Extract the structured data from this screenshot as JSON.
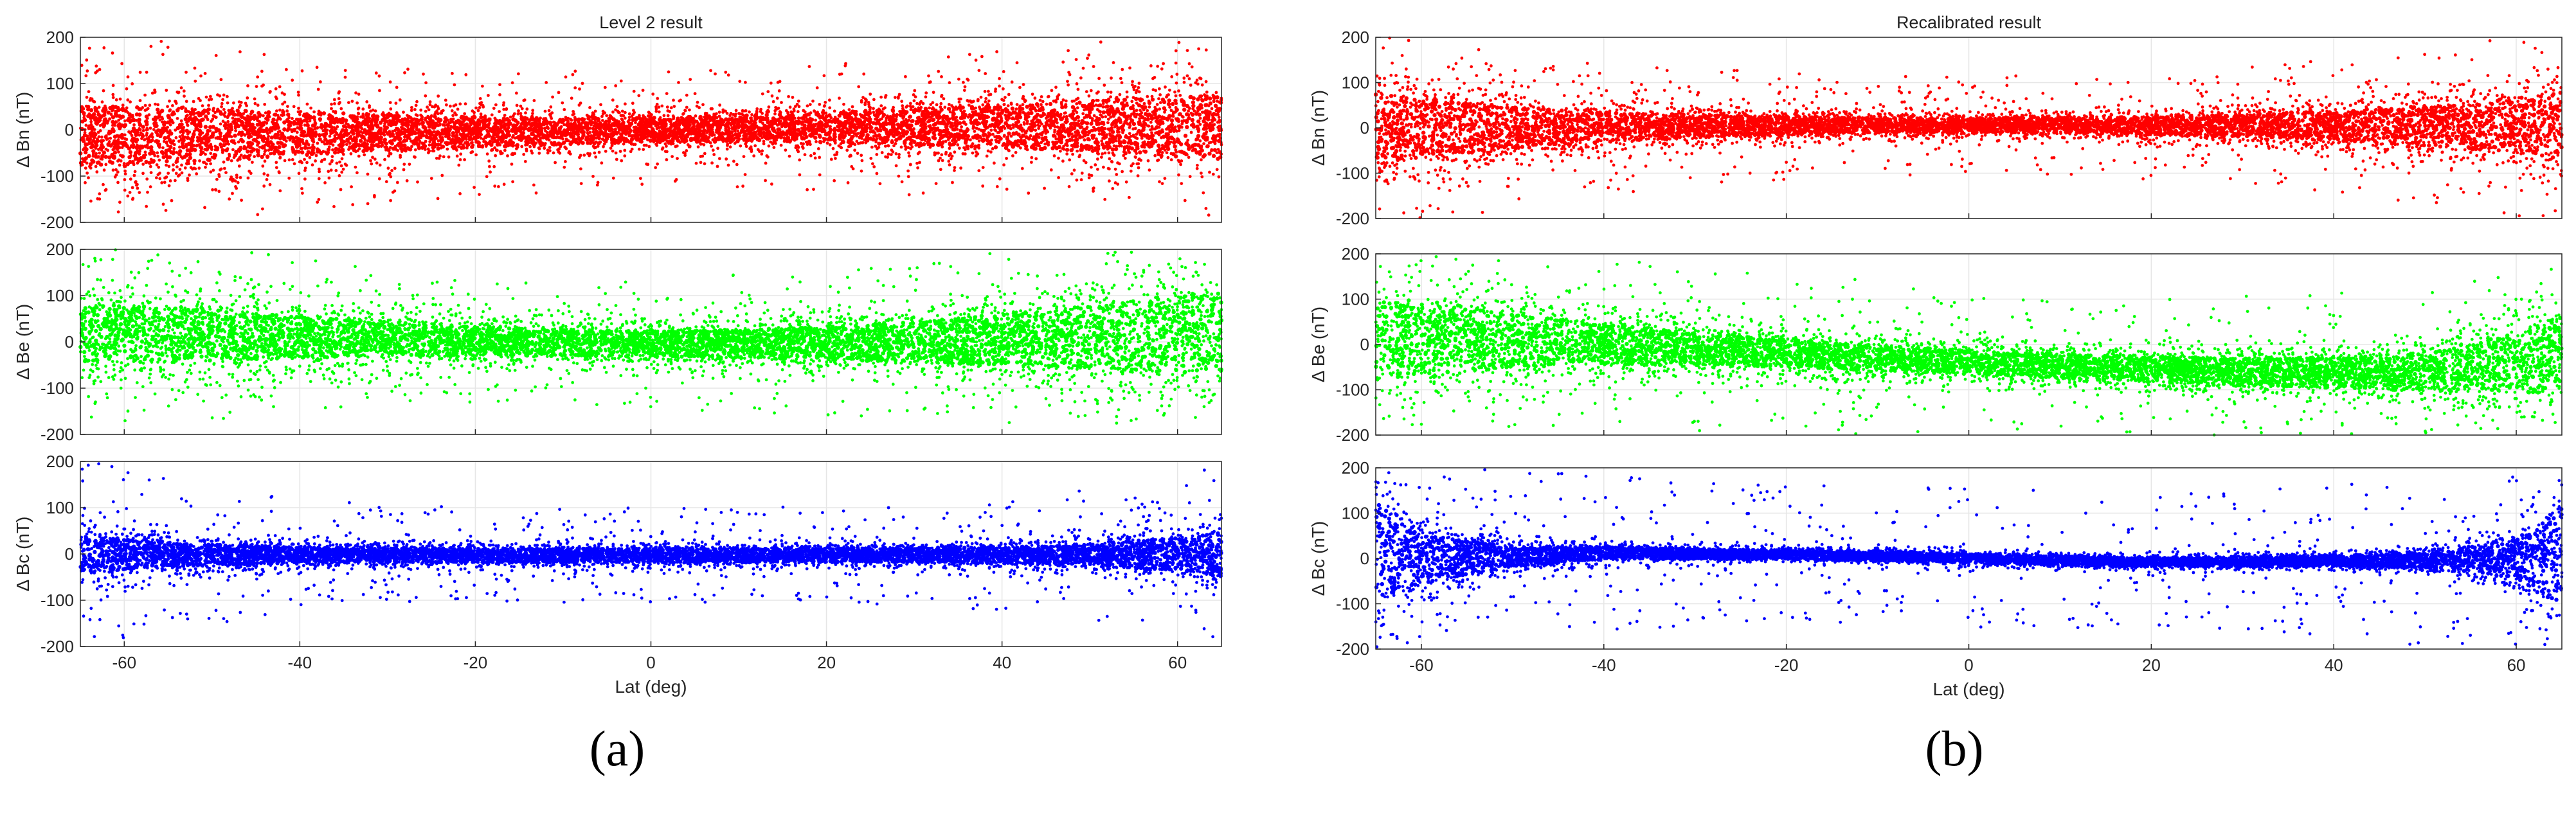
{
  "figure": {
    "labels": [
      "(a)",
      "(b)"
    ],
    "colors": {
      "n": "#ff0000",
      "e": "#00ff00",
      "c": "#0000ff",
      "axis": "#262626",
      "grid": "#e6e6e6"
    }
  },
  "chart_data": [
    {
      "type": "scatter",
      "title": "Level 2 result",
      "xlabel": "Lat (deg)",
      "xlim": [
        -65,
        65
      ],
      "xticks": [
        -60,
        -40,
        -20,
        0,
        20,
        40,
        60
      ],
      "xtick_labels": [
        "-60",
        "-40",
        "-20",
        "0",
        "20",
        "40",
        "60"
      ],
      "grid": true,
      "subplots": [
        {
          "ylabel": "Δ Bn (nT)",
          "color": "#ff0000",
          "ylim": [
            -200,
            200
          ],
          "yticks": [
            -200,
            -100,
            0,
            100,
            200
          ],
          "ytick_labels": [
            "-200",
            "-100",
            "0",
            "100",
            "200"
          ],
          "x": [
            -65,
            -60,
            -50,
            -40,
            -30,
            -20,
            -10,
            0,
            10,
            20,
            30,
            40,
            50,
            60,
            65
          ],
          "center": [
            -10,
            -12,
            -10,
            -8,
            -6,
            -5,
            -3,
            0,
            3,
            5,
            6,
            8,
            8,
            6,
            5
          ],
          "half_width": [
            120,
            118,
            100,
            85,
            70,
            60,
            52,
            48,
            52,
            60,
            70,
            85,
            100,
            118,
            125
          ],
          "outlier_spread": [
            200,
            200,
            185,
            165,
            150,
            140,
            130,
            125,
            130,
            140,
            150,
            165,
            185,
            200,
            200
          ]
        },
        {
          "ylabel": "Δ Be (nT)",
          "color": "#00ff00",
          "ylim": [
            -200,
            200
          ],
          "yticks": [
            -200,
            -100,
            0,
            100,
            200
          ],
          "ytick_labels": [
            "-200",
            "-100",
            "0",
            "100",
            "200"
          ],
          "x": [
            -65,
            -60,
            -50,
            -40,
            -30,
            -20,
            -10,
            0,
            10,
            20,
            30,
            40,
            50,
            60,
            65
          ],
          "center": [
            20,
            20,
            15,
            10,
            6,
            2,
            -2,
            -5,
            -4,
            -3,
            0,
            5,
            10,
            15,
            20
          ],
          "half_width": [
            120,
            118,
            100,
            82,
            68,
            58,
            52,
            50,
            55,
            65,
            80,
            100,
            125,
            150,
            155
          ],
          "outlier_spread": [
            200,
            200,
            190,
            170,
            150,
            140,
            135,
            140,
            150,
            160,
            175,
            190,
            200,
            200,
            200
          ]
        },
        {
          "ylabel": "Δ Bc (nT)",
          "color": "#0000ff",
          "ylim": [
            -200,
            200
          ],
          "yticks": [
            -200,
            -100,
            0,
            100,
            200
          ],
          "ytick_labels": [
            "-200",
            "-100",
            "0",
            "100",
            "200"
          ],
          "x": [
            -65,
            -60,
            -50,
            -40,
            -30,
            -20,
            -10,
            0,
            10,
            20,
            30,
            40,
            50,
            60,
            65
          ],
          "center": [
            0,
            0,
            -2,
            -2,
            -3,
            -3,
            -3,
            -3,
            -3,
            -2,
            -2,
            -2,
            -1,
            0,
            0
          ],
          "half_width": [
            75,
            60,
            40,
            30,
            28,
            27,
            27,
            27,
            27,
            27,
            28,
            30,
            40,
            65,
            90
          ],
          "outlier_spread": [
            200,
            190,
            150,
            120,
            110,
            105,
            105,
            105,
            105,
            105,
            110,
            120,
            150,
            190,
            200
          ]
        }
      ]
    },
    {
      "type": "scatter",
      "title": "Recalibrated result",
      "xlabel": "Lat (deg)",
      "xlim": [
        -65,
        65
      ],
      "xticks": [
        -60,
        -40,
        -20,
        0,
        20,
        40,
        60
      ],
      "xtick_labels": [
        "-60",
        "-40",
        "-20",
        "0",
        "20",
        "40",
        "60"
      ],
      "grid": true,
      "subplots": [
        {
          "ylabel": "Δ Bn (nT)",
          "color": "#ff0000",
          "ylim": [
            -200,
            200
          ],
          "yticks": [
            -200,
            -100,
            0,
            100,
            200
          ],
          "ytick_labels": [
            "-200",
            "-100",
            "0",
            "100",
            "200"
          ],
          "x": [
            -65,
            -60,
            -50,
            -40,
            -30,
            -20,
            -10,
            0,
            10,
            20,
            30,
            40,
            50,
            60,
            65
          ],
          "center": [
            0,
            0,
            0,
            2,
            4,
            5,
            6,
            6,
            6,
            5,
            5,
            5,
            5,
            5,
            5
          ],
          "half_width": [
            140,
            120,
            85,
            60,
            45,
            35,
            30,
            28,
            30,
            35,
            45,
            60,
            80,
            110,
            135
          ],
          "outlier_spread": [
            200,
            200,
            180,
            150,
            130,
            120,
            110,
            110,
            110,
            120,
            130,
            150,
            175,
            200,
            200
          ]
        },
        {
          "ylabel": "Δ Be (nT)",
          "color": "#00ff00",
          "ylim": [
            -200,
            200
          ],
          "yticks": [
            -200,
            -100,
            0,
            100,
            200
          ],
          "ytick_labels": [
            "-200",
            "-100",
            "0",
            "100",
            "200"
          ],
          "x": [
            -65,
            -60,
            -50,
            -40,
            -30,
            -20,
            -10,
            0,
            10,
            20,
            30,
            40,
            50,
            60,
            65
          ],
          "center": [
            10,
            15,
            10,
            0,
            -10,
            -20,
            -30,
            -40,
            -48,
            -55,
            -60,
            -62,
            -60,
            -40,
            -20
          ],
          "half_width": [
            160,
            150,
            110,
            80,
            65,
            55,
            50,
            48,
            48,
            50,
            55,
            60,
            75,
            120,
            160
          ],
          "outlier_spread": [
            200,
            200,
            200,
            190,
            180,
            175,
            170,
            170,
            170,
            170,
            175,
            180,
            190,
            200,
            200
          ]
        },
        {
          "ylabel": "Δ Bc (nT)",
          "color": "#0000ff",
          "ylim": [
            -200,
            200
          ],
          "yticks": [
            -200,
            -100,
            0,
            100,
            200
          ],
          "ytick_labels": [
            "-200",
            "-100",
            "0",
            "100",
            "200"
          ],
          "x": [
            -65,
            -60,
            -50,
            -40,
            -30,
            -20,
            -10,
            0,
            10,
            20,
            30,
            40,
            50,
            60,
            65
          ],
          "center": [
            20,
            0,
            5,
            12,
            10,
            8,
            5,
            0,
            -5,
            -8,
            -8,
            -6,
            -4,
            0,
            0
          ],
          "half_width": [
            200,
            100,
            40,
            25,
            20,
            18,
            18,
            18,
            18,
            18,
            18,
            20,
            30,
            80,
            200
          ],
          "outlier_spread": [
            200,
            200,
            190,
            170,
            160,
            155,
            155,
            155,
            155,
            155,
            160,
            170,
            190,
            200,
            200
          ]
        }
      ]
    }
  ]
}
